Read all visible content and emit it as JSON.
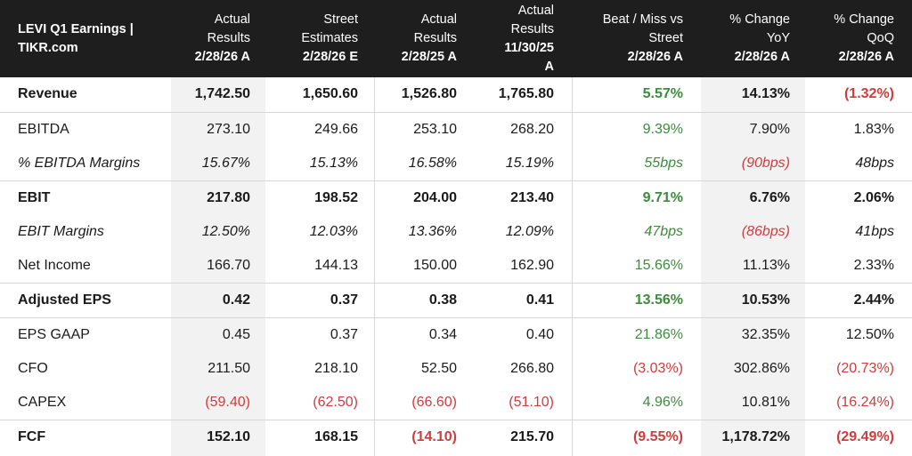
{
  "header": {
    "title_lines": [
      "LEVI Q1 Earnings |",
      "TIKR.com"
    ],
    "columns": [
      {
        "lines": [
          "Actual",
          "Results"
        ],
        "bold": "2/28/26 A"
      },
      {
        "lines": [
          "Street",
          "Estimates"
        ],
        "bold": "2/28/26 E"
      },
      {
        "lines": [
          "Actual",
          "Results"
        ],
        "bold": "2/28/25 A"
      },
      {
        "lines": [
          "Actual",
          "Results"
        ],
        "bold": "11/30/25",
        "bold2": "A"
      },
      {
        "lines": [
          "Beat / Miss vs",
          "Street"
        ],
        "bold": "2/28/26 A"
      },
      {
        "lines": [
          "% Change",
          "YoY"
        ],
        "bold": "2/28/26 A"
      },
      {
        "lines": [
          "% Change",
          "QoQ"
        ],
        "bold": "2/28/26 A"
      }
    ]
  },
  "rows": [
    {
      "label": "Revenue",
      "style": "bold",
      "values": [
        "1,742.50",
        "1,650.60",
        "1,526.80",
        "1,765.80",
        "5.57%",
        "14.13%",
        "(1.32%)"
      ],
      "colors": [
        "",
        "",
        "",
        "",
        "pos",
        "",
        "neg"
      ]
    },
    {
      "label": "EBITDA",
      "style": "normal",
      "values": [
        "273.10",
        "249.66",
        "253.10",
        "268.20",
        "9.39%",
        "7.90%",
        "1.83%"
      ],
      "colors": [
        "",
        "",
        "",
        "",
        "pos",
        "",
        ""
      ]
    },
    {
      "label": "% EBITDA Margins",
      "style": "italic",
      "values": [
        "15.67%",
        "15.13%",
        "16.58%",
        "15.19%",
        "55bps",
        "(90bps)",
        "48bps"
      ],
      "colors": [
        "",
        "",
        "",
        "",
        "pos",
        "neg",
        ""
      ]
    },
    {
      "label": "EBIT",
      "style": "bold",
      "values": [
        "217.80",
        "198.52",
        "204.00",
        "213.40",
        "9.71%",
        "6.76%",
        "2.06%"
      ],
      "colors": [
        "",
        "",
        "",
        "",
        "pos",
        "",
        ""
      ]
    },
    {
      "label": "EBIT Margins",
      "style": "italic",
      "values": [
        "12.50%",
        "12.03%",
        "13.36%",
        "12.09%",
        "47bps",
        "(86bps)",
        "41bps"
      ],
      "colors": [
        "",
        "",
        "",
        "",
        "pos",
        "neg",
        ""
      ]
    },
    {
      "label": "Net Income",
      "style": "normal",
      "values": [
        "166.70",
        "144.13",
        "150.00",
        "162.90",
        "15.66%",
        "11.13%",
        "2.33%"
      ],
      "colors": [
        "",
        "",
        "",
        "",
        "pos",
        "",
        ""
      ]
    },
    {
      "label": "Adjusted EPS",
      "style": "bold",
      "values": [
        "0.42",
        "0.37",
        "0.38",
        "0.41",
        "13.56%",
        "10.53%",
        "2.44%"
      ],
      "colors": [
        "",
        "",
        "",
        "",
        "pos",
        "",
        ""
      ]
    },
    {
      "label": "EPS GAAP",
      "style": "normal",
      "values": [
        "0.45",
        "0.37",
        "0.34",
        "0.40",
        "21.86%",
        "32.35%",
        "12.50%"
      ],
      "colors": [
        "",
        "",
        "",
        "",
        "pos",
        "",
        ""
      ]
    },
    {
      "label": "CFO",
      "style": "normal",
      "values": [
        "211.50",
        "218.10",
        "52.50",
        "266.80",
        "(3.03%)",
        "302.86%",
        "(20.73%)"
      ],
      "colors": [
        "",
        "",
        "",
        "",
        "neg",
        "",
        "neg"
      ]
    },
    {
      "label": "CAPEX",
      "style": "normal",
      "values": [
        "(59.40)",
        "(62.50)",
        "(66.60)",
        "(51.10)",
        "4.96%",
        "10.81%",
        "(16.24%)"
      ],
      "colors": [
        "neg",
        "neg",
        "neg",
        "neg",
        "pos",
        "",
        "neg"
      ]
    },
    {
      "label": "FCF",
      "style": "bold",
      "values": [
        "152.10",
        "168.15",
        "(14.10)",
        "215.70",
        "(9.55%)",
        "1,178.72%",
        "(29.49%)"
      ],
      "colors": [
        "",
        "",
        "neg",
        "",
        "neg",
        "",
        "neg"
      ]
    }
  ],
  "theme": {
    "header_bg": "#1e1e1e",
    "positive": "#3d8b3d",
    "negative": "#d13c3c",
    "shade": "#f2f2f2"
  }
}
